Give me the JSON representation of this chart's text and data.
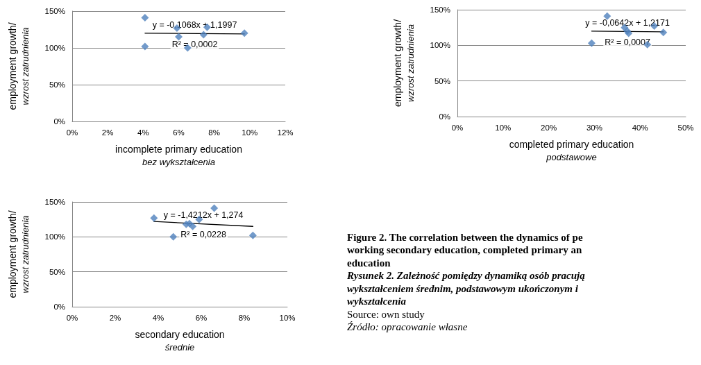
{
  "chart_data": [
    {
      "type": "scatter",
      "xlabel": "incomplete primary education\nbez wykształcenia",
      "ylabel": "employment growth/\nwzrost zatrudnienia",
      "xlim": [
        0,
        12
      ],
      "xticks": [
        {
          "value": 0,
          "label": "0%"
        },
        {
          "value": 2,
          "label": "2%"
        },
        {
          "value": 4,
          "label": "4%"
        },
        {
          "value": 6,
          "label": "6%"
        },
        {
          "value": 8,
          "label": "8%"
        },
        {
          "value": 10,
          "label": "10%"
        },
        {
          "value": 12,
          "label": "12%"
        }
      ],
      "ylim": [
        0,
        150
      ],
      "yticks": [
        {
          "value": 0,
          "label": "0%"
        },
        {
          "value": 50,
          "label": "50%"
        },
        {
          "value": 100,
          "label": "100%"
        },
        {
          "value": 150,
          "label": "150%"
        }
      ],
      "grid": "y",
      "marker": "diamond",
      "series": [
        {
          "type": "scatter",
          "color": "#4f81bd",
          "x": [
            4.1,
            4.1,
            5.9,
            6.0,
            6.5,
            7.4,
            7.6,
            9.7
          ],
          "values": [
            141,
            102,
            127,
            115,
            100,
            118,
            128,
            120
          ]
        },
        {
          "type": "line",
          "color": "#000000",
          "marker": "none",
          "x": [
            4.1,
            9.7
          ],
          "values": [
            120,
            119
          ]
        }
      ],
      "annotations": [
        "y = -0,1068x + 1,1997",
        "R² = 0,0002"
      ]
    },
    {
      "type": "scatter",
      "xlabel": "completed primary education\npodstawowe",
      "ylabel": "employment growth/\nwzrost zatrudnienia",
      "xlim": [
        0,
        50
      ],
      "xticks": [
        {
          "value": 0,
          "label": "0%"
        },
        {
          "value": 10,
          "label": "10%"
        },
        {
          "value": 20,
          "label": "20%"
        },
        {
          "value": 30,
          "label": "30%"
        },
        {
          "value": 40,
          "label": "40%"
        },
        {
          "value": 50,
          "label": "50%"
        }
      ],
      "ylim": [
        0,
        150
      ],
      "yticks": [
        {
          "value": 0,
          "label": "0%"
        },
        {
          "value": 50,
          "label": "50%"
        },
        {
          "value": 100,
          "label": "100%"
        },
        {
          "value": 150,
          "label": "150%"
        }
      ],
      "grid": "y",
      "marker": "diamond",
      "series": [
        {
          "type": "scatter",
          "color": "#4f81bd",
          "x": [
            32.8,
            29.4,
            36.6,
            37.2,
            37.5,
            41.6,
            43.1,
            45.1
          ],
          "values": [
            141,
            103,
            125,
            120,
            117,
            101,
            127,
            118
          ]
        },
        {
          "type": "line",
          "color": "#000000",
          "marker": "none",
          "x": [
            29.4,
            45.1
          ],
          "values": [
            120,
            119
          ]
        }
      ],
      "annotations": [
        "y = -0,0642x + 1,2171",
        "R² = 0,0007"
      ]
    },
    {
      "type": "scatter",
      "xlabel": "secondary education\nśrednie",
      "ylabel": "employment growth/\nwzrost zatrudnienia",
      "xlim": [
        0,
        10
      ],
      "xticks": [
        {
          "value": 0,
          "label": "0%"
        },
        {
          "value": 2,
          "label": "2%"
        },
        {
          "value": 4,
          "label": "4%"
        },
        {
          "value": 6,
          "label": "6%"
        },
        {
          "value": 8,
          "label": "8%"
        },
        {
          "value": 10,
          "label": "10%"
        }
      ],
      "ylim": [
        0,
        150
      ],
      "yticks": [
        {
          "value": 0,
          "label": "0%"
        },
        {
          "value": 50,
          "label": "50%"
        },
        {
          "value": 100,
          "label": "100%"
        },
        {
          "value": 150,
          "label": "150%"
        }
      ],
      "grid": "y",
      "marker": "diamond",
      "series": [
        {
          "type": "scatter",
          "color": "#4f81bd",
          "x": [
            3.8,
            4.7,
            5.3,
            5.45,
            5.6,
            5.9,
            6.6,
            8.4
          ],
          "values": [
            127,
            100,
            118,
            119,
            115,
            125,
            141,
            102
          ]
        },
        {
          "type": "line",
          "color": "#000000",
          "marker": "none",
          "x": [
            3.8,
            8.4
          ],
          "values": [
            122,
            115
          ]
        }
      ],
      "annotations": [
        "y = -1,4212x + 1,274",
        "R² = 0,0228"
      ]
    },
    {
      "type": "other",
      "title": "Figure 2. The correlation between the dynamics of pe\nworking secondary education, completed primary an\neducation",
      "subtitle": "Rysunek 2. Zależność pomiędzy dynamiką osób pracują\nwykształceniem średnim, podstawowym ukończonym i\nwykształcenia",
      "annotations": [
        "Source: own study",
        "Źródło: opracowanie własne"
      ]
    }
  ]
}
